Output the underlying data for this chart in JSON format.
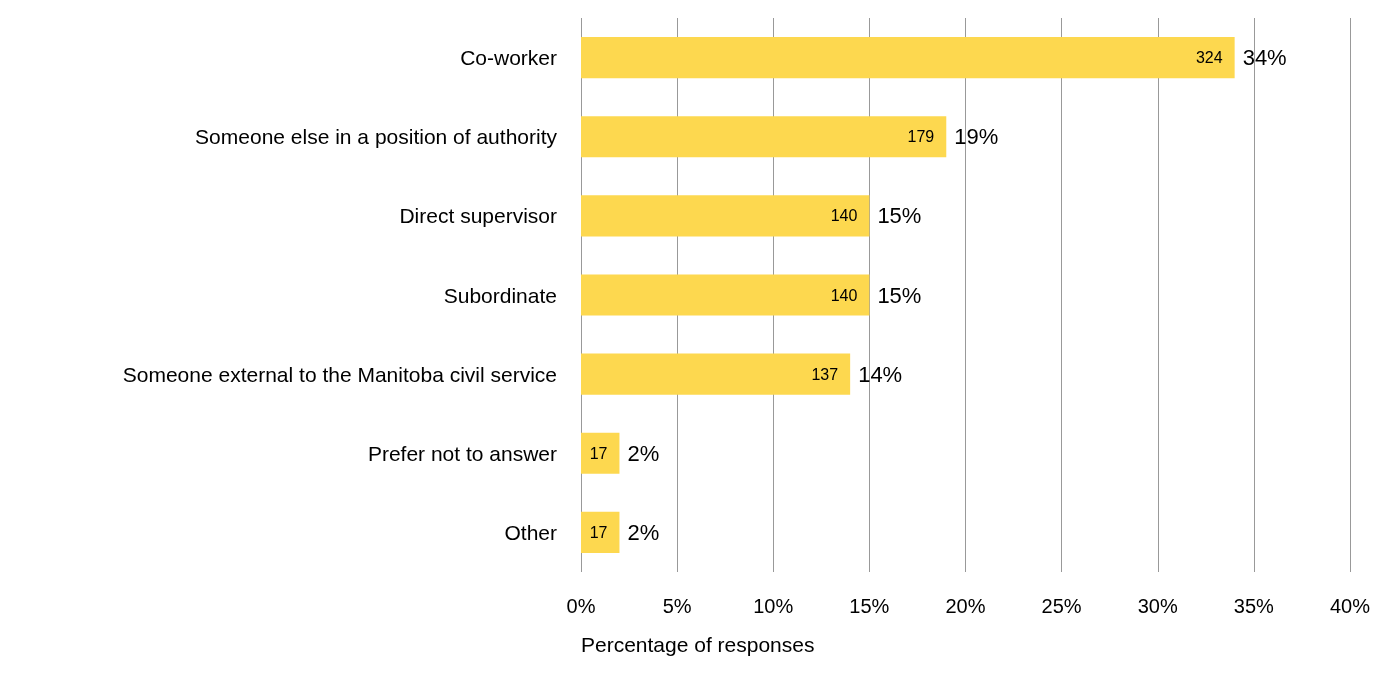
{
  "chart_data": {
    "type": "bar",
    "orientation": "horizontal",
    "xlabel": "Percentage of responses",
    "categories": [
      "Co-worker",
      "Someone else in a position of authority",
      "Direct supervisor",
      "Subordinate",
      "Someone external to the Manitoba civil service",
      "Prefer not to answer",
      "Other"
    ],
    "values": [
      34,
      19,
      15,
      15,
      14,
      2,
      2
    ],
    "value_labels": [
      "34%",
      "19%",
      "15%",
      "15%",
      "14%",
      "2%",
      "2%"
    ],
    "color": "#fdd84f",
    "xlim": [
      0,
      40
    ],
    "xticks": [
      {
        "value": 0,
        "label": "0%"
      },
      {
        "value": 5,
        "label": "5%"
      },
      {
        "value": 10,
        "label": "10%"
      },
      {
        "value": 15,
        "label": "15%"
      },
      {
        "value": 20,
        "label": "20%"
      },
      {
        "value": 25,
        "label": "25%"
      },
      {
        "value": 30,
        "label": "30%"
      },
      {
        "value": 35,
        "label": "35%"
      },
      {
        "value": 40,
        "label": "40%"
      }
    ],
    "grid": "x",
    "annotations": [
      {
        "text": "324",
        "x": 34,
        "y": "Co-worker"
      },
      {
        "text": "179",
        "x": 19,
        "y": "Someone else in a position of authority"
      },
      {
        "text": "140",
        "x": 15,
        "y": "Direct supervisor"
      },
      {
        "text": "140",
        "x": 15,
        "y": "Subordinate"
      },
      {
        "text": "137",
        "x": 14,
        "y": "Someone external to the Manitoba civil service"
      },
      {
        "text": "17",
        "x": 2,
        "y": "Prefer not to answer"
      },
      {
        "text": "17",
        "x": 2,
        "y": "Other"
      }
    ]
  }
}
